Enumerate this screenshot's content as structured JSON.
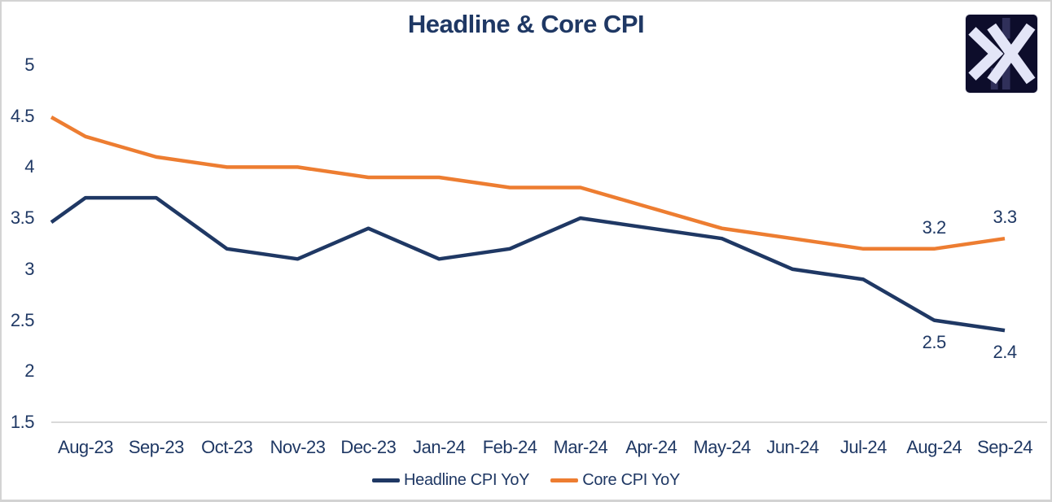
{
  "colors": {
    "navy": "#1F3864",
    "orange": "#ED7D31",
    "axis_line": "#D9D9D9",
    "frame_border": "#D3D3D3",
    "logo_background": "#0D0D2B",
    "logo_glyph": "#E3E5F7",
    "logo_faint_bars": "#30305A"
  },
  "chart_data": {
    "type": "line",
    "title": "Headline & Core CPI",
    "xlabel": "",
    "ylabel": "",
    "grid": false,
    "x_axis": {
      "categories": [
        "Aug-23",
        "Sep-23",
        "Oct-23",
        "Nov-23",
        "Dec-23",
        "Jan-24",
        "Feb-24",
        "Mar-24",
        "Apr-24",
        "May-24",
        "Jun-24",
        "Jul-24",
        "Aug-24",
        "Sep-24"
      ]
    },
    "y_axis": {
      "range": [
        1.5,
        5
      ],
      "ticks": [
        {
          "label": "5",
          "value": 5
        },
        {
          "label": "4.5",
          "value": 4.5
        },
        {
          "label": "4",
          "value": 4
        },
        {
          "label": "3.5",
          "value": 3.5
        },
        {
          "label": "3",
          "value": 3
        },
        {
          "label": "2.5",
          "value": 2.5
        },
        {
          "label": "2",
          "value": 2
        },
        {
          "label": "1.5",
          "value": 1.5
        }
      ]
    },
    "series": [
      {
        "key": "headline",
        "name": "Headline CPI YoY",
        "color": "#1F3864",
        "values": [
          3.7,
          3.7,
          3.2,
          3.1,
          3.4,
          3.1,
          3.2,
          3.5,
          3.4,
          3.3,
          3.0,
          2.9,
          2.5,
          2.4
        ],
        "visible_left_edge_value": 3.46
      },
      {
        "key": "core",
        "name": "Core CPI YoY",
        "color": "#ED7D31",
        "values": [
          4.3,
          4.1,
          4.0,
          4.0,
          3.9,
          3.9,
          3.8,
          3.8,
          3.6,
          3.4,
          3.3,
          3.2,
          3.2,
          3.3
        ],
        "visible_left_edge_value": 4.49
      }
    ],
    "data_labels": [
      {
        "series_index": 1,
        "category_index": 12,
        "text": "3.2",
        "placement": "above"
      },
      {
        "series_index": 1,
        "category_index": 13,
        "text": "3.3",
        "placement": "above"
      },
      {
        "series_index": 0,
        "category_index": 12,
        "text": "2.5",
        "placement": "below"
      },
      {
        "series_index": 0,
        "category_index": 13,
        "text": "2.4",
        "placement": "below"
      }
    ],
    "legend": {
      "position": "bottom",
      "items": [
        "Headline CPI YoY",
        "Core CPI YoY"
      ]
    }
  }
}
